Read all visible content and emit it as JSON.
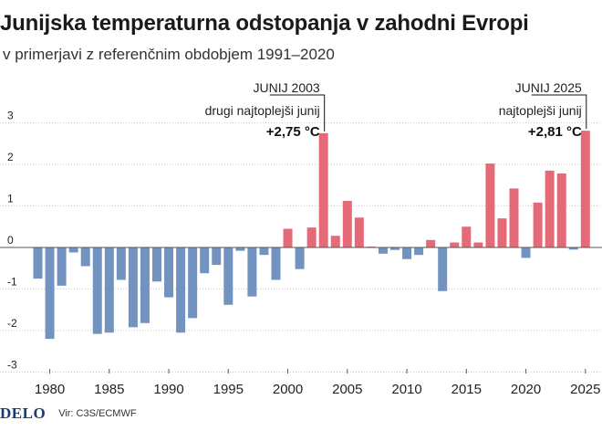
{
  "chart_data": {
    "type": "bar",
    "title": "Junijska temperaturna odstopanja v zahodni Evropi",
    "subtitle": "v primerjavi z referenčnim obdobjem 1991–2020",
    "ylim": [
      -3,
      3
    ],
    "yticks": [
      "-3",
      "-2",
      "-1",
      "0",
      "1",
      "2",
      "3"
    ],
    "xticks": [
      "1980",
      "1985",
      "1990",
      "1995",
      "2000",
      "2005",
      "2010",
      "2015",
      "2020",
      "2025"
    ],
    "years": [
      1979,
      1980,
      1981,
      1982,
      1983,
      1984,
      1985,
      1986,
      1987,
      1988,
      1989,
      1990,
      1991,
      1992,
      1993,
      1994,
      1995,
      1996,
      1997,
      1998,
      1999,
      2000,
      2001,
      2002,
      2003,
      2004,
      2005,
      2006,
      2007,
      2008,
      2009,
      2010,
      2011,
      2012,
      2013,
      2014,
      2015,
      2016,
      2017,
      2018,
      2019,
      2020,
      2021,
      2022,
      2023,
      2024,
      2025
    ],
    "values": [
      -0.75,
      -2.2,
      -0.92,
      -0.12,
      -0.45,
      -2.08,
      -2.05,
      -0.78,
      -1.92,
      -1.82,
      -0.82,
      -1.2,
      -2.05,
      -1.7,
      -0.62,
      -0.42,
      -1.38,
      -0.08,
      -1.18,
      -0.18,
      -0.78,
      0.45,
      -0.52,
      0.48,
      2.75,
      0.28,
      1.12,
      0.72,
      0.02,
      -0.15,
      -0.06,
      -0.28,
      -0.18,
      0.18,
      -1.05,
      0.12,
      0.5,
      0.12,
      2.02,
      0.7,
      1.42,
      -0.25,
      1.08,
      1.85,
      1.78,
      -0.05,
      2.81
    ],
    "colors": {
      "positive": "#e46a78",
      "negative": "#7292c0",
      "grid": "#c8c8c8",
      "axis": "#555555"
    },
    "annotations": [
      {
        "year": 2003,
        "label": "JUNIJ 2003",
        "text": "drugi najtoplejši junij",
        "value": "+2,75 °C"
      },
      {
        "year": 2025,
        "label": "JUNIJ 2025",
        "text": "najtoplejši junij",
        "value": "+2,81 °C"
      }
    ]
  },
  "footer": {
    "logo": "DELO",
    "source": "Vir: C3S/ECMWF"
  }
}
